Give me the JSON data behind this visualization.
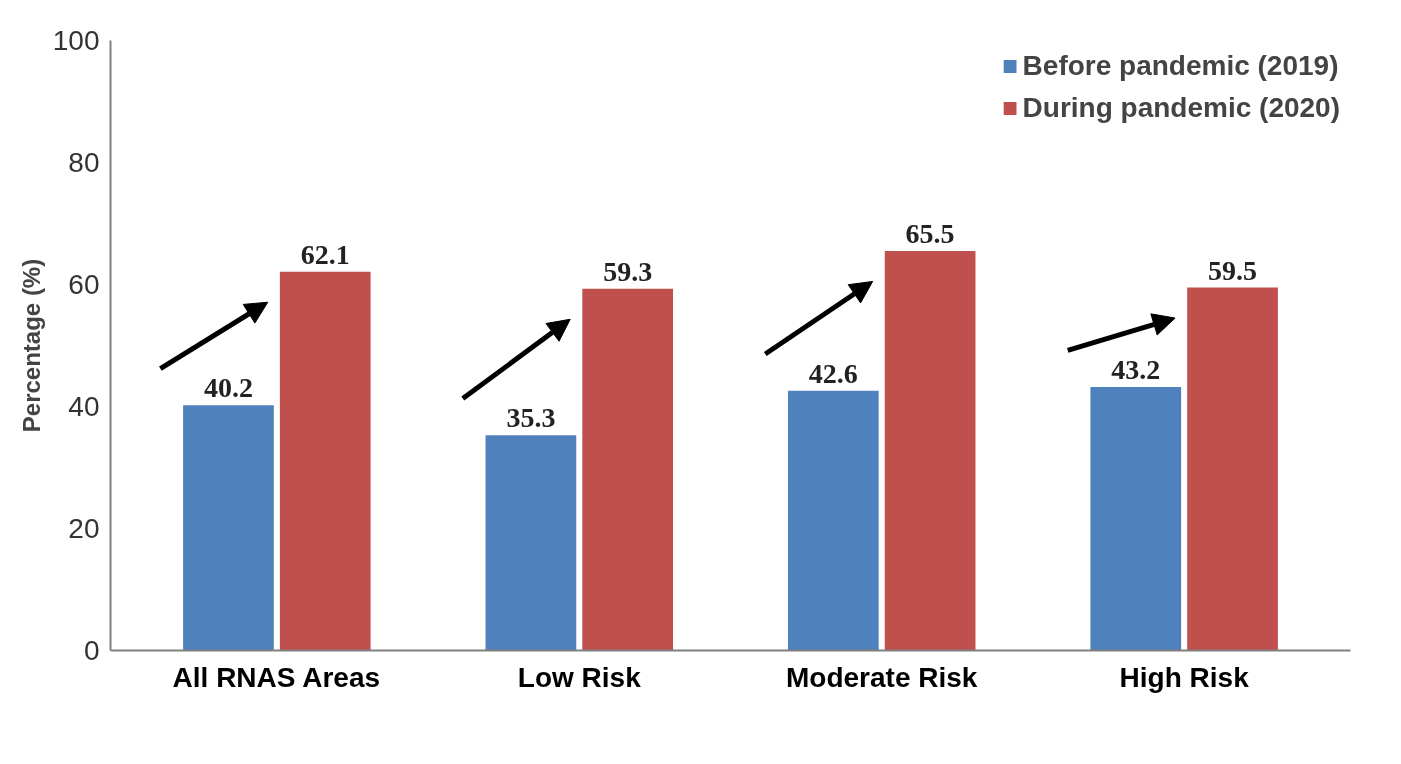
{
  "chart_data": {
    "type": "bar",
    "ylabel": "Percentage (%)",
    "categories": [
      "All RNAS Areas",
      "Low Risk",
      "Moderate Risk",
      "High Risk"
    ],
    "series": [
      {
        "name": "Before pandemic (2019)",
        "color": "#4f81bd",
        "values": [
          40.2,
          35.3,
          42.6,
          43.2
        ]
      },
      {
        "name": "During pandemic (2020)",
        "color": "#c0504d",
        "values": [
          62.1,
          59.3,
          65.5,
          59.5
        ]
      }
    ],
    "ylim": [
      0,
      100
    ],
    "yticks": [
      0,
      20,
      40,
      60,
      80,
      100
    ],
    "grid": false,
    "legend": "top right",
    "data_labels": true
  }
}
